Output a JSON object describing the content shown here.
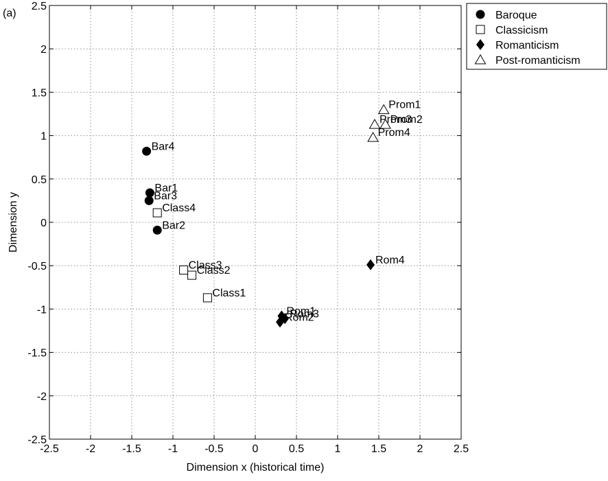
{
  "panel_label": "(a)",
  "chart_data": {
    "type": "scatter",
    "title": "",
    "xlabel": "Dimension x (historical time)",
    "ylabel": "Dimension y",
    "xlim": [
      -2.5,
      2.5
    ],
    "ylim": [
      -2.5,
      2.5
    ],
    "xticks": [
      -2.5,
      -2,
      -1.5,
      -1,
      -0.5,
      0,
      0.5,
      1,
      1.5,
      2,
      2.5
    ],
    "yticks": [
      -2.5,
      -2,
      -1.5,
      -1,
      -0.5,
      0,
      0.5,
      1,
      1.5,
      2,
      2.5
    ],
    "grid": true,
    "legend_position": "outside-top-right",
    "series": [
      {
        "name": "Baroque",
        "marker": "circle-filled",
        "points": [
          {
            "label": "Bar1",
            "x": -1.28,
            "y": 0.34
          },
          {
            "label": "Bar2",
            "x": -1.19,
            "y": -0.09
          },
          {
            "label": "Bar3",
            "x": -1.29,
            "y": 0.25
          },
          {
            "label": "Bar4",
            "x": -1.32,
            "y": 0.82
          }
        ]
      },
      {
        "name": "Classicism",
        "marker": "square-open",
        "points": [
          {
            "label": "Class1",
            "x": -0.58,
            "y": -0.87
          },
          {
            "label": "Class2",
            "x": -0.77,
            "y": -0.61
          },
          {
            "label": "Class3",
            "x": -0.87,
            "y": -0.55
          },
          {
            "label": "Class4",
            "x": -1.19,
            "y": 0.11
          }
        ]
      },
      {
        "name": "Romanticism",
        "marker": "diamond-filled",
        "points": [
          {
            "label": "Rom1",
            "x": 0.32,
            "y": -1.08
          },
          {
            "label": "Rom2",
            "x": 0.3,
            "y": -1.15
          },
          {
            "label": "Rom3",
            "x": 0.36,
            "y": -1.11
          },
          {
            "label": "Rom4",
            "x": 1.4,
            "y": -0.49
          }
        ]
      },
      {
        "name": "Post-romanticism",
        "marker": "triangle-open",
        "points": [
          {
            "label": "Prom1",
            "x": 1.56,
            "y": 1.3
          },
          {
            "label": "Prom2",
            "x": 1.58,
            "y": 1.13
          },
          {
            "label": "Prom3",
            "x": 1.45,
            "y": 1.13
          },
          {
            "label": "Prom4",
            "x": 1.43,
            "y": 0.98
          }
        ]
      }
    ]
  }
}
